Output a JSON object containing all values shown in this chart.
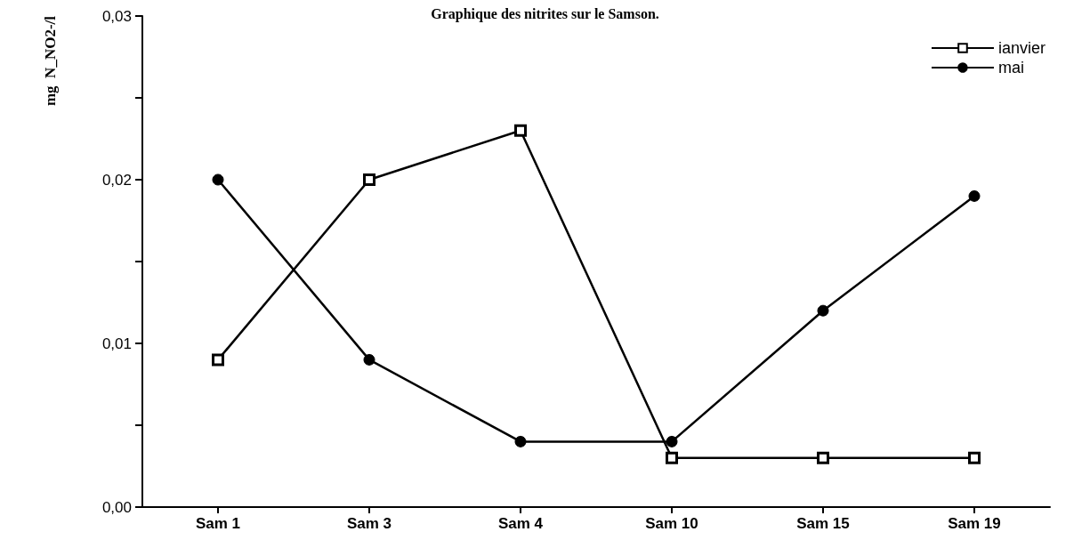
{
  "chart_data": {
    "type": "line",
    "title": "Graphique des nitrites sur le Samson.",
    "ylabel": "mg  N_NO2-/l",
    "categories": [
      "Sam 1",
      "Sam 3",
      "Sam 4",
      "Sam 10",
      "Sam 15",
      "Sam 19"
    ],
    "series": [
      {
        "name": "ianvier",
        "color": "#000000",
        "marker": "square",
        "values": [
          0.009,
          0.02,
          0.023,
          0.003,
          0.003,
          0.003
        ]
      },
      {
        "name": "mai",
        "color": "#000000",
        "marker": "circle",
        "values": [
          0.02,
          0.009,
          0.004,
          0.004,
          0.012,
          0.019
        ]
      }
    ],
    "ylim": [
      0,
      0.03
    ],
    "yticks": [
      {
        "value": 0,
        "label": "0,00"
      },
      {
        "value": 0.005,
        "label": null
      },
      {
        "value": 0.01,
        "label": "0,01"
      },
      {
        "value": 0.015,
        "label": null
      },
      {
        "value": 0.02,
        "label": "0,02"
      },
      {
        "value": 0.025,
        "label": null
      },
      {
        "value": 0.03,
        "label": "0,03"
      }
    ],
    "grid": false,
    "legend": "top right",
    "line_style": "solid"
  }
}
